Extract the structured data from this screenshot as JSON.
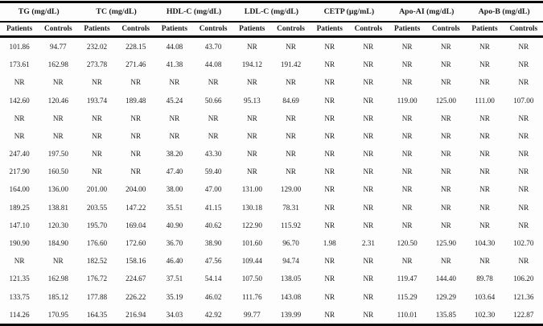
{
  "table": {
    "groups": [
      {
        "label": "TG (mg/dL)"
      },
      {
        "label": "TC (mg/dL)"
      },
      {
        "label": "HDL-C (mg/dL)"
      },
      {
        "label": "LDL-C (mg/dL)"
      },
      {
        "label": "CETP (µg/mL)"
      },
      {
        "label": "Apo-AI (mg/dL)"
      },
      {
        "label": "Apo-B (mg/dL)"
      }
    ],
    "sub_headers": [
      "Patients",
      "Controls"
    ],
    "rows": [
      [
        "101.86",
        "94.77",
        "232.02",
        "228.15",
        "44.08",
        "43.70",
        "NR",
        "NR",
        "NR",
        "NR",
        "NR",
        "NR",
        "NR",
        "NR"
      ],
      [
        "173.61",
        "162.98",
        "273.78",
        "271.46",
        "41.38",
        "44.08",
        "194.12",
        "191.42",
        "NR",
        "NR",
        "NR",
        "NR",
        "NR",
        "NR"
      ],
      [
        "NR",
        "NR",
        "NR",
        "NR",
        "NR",
        "NR",
        "NR",
        "NR",
        "NR",
        "NR",
        "NR",
        "NR",
        "NR",
        "NR"
      ],
      [
        "142.60",
        "120.46",
        "193.74",
        "189.48",
        "45.24",
        "50.66",
        "95.13",
        "84.69",
        "NR",
        "NR",
        "119.00",
        "125.00",
        "111.00",
        "107.00"
      ],
      [
        "NR",
        "NR",
        "NR",
        "NR",
        "NR",
        "NR",
        "NR",
        "NR",
        "NR",
        "NR",
        "NR",
        "NR",
        "NR",
        "NR"
      ],
      [
        "NR",
        "NR",
        "NR",
        "NR",
        "NR",
        "NR",
        "NR",
        "NR",
        "NR",
        "NR",
        "NR",
        "NR",
        "NR",
        "NR"
      ],
      [
        "247.40",
        "197.50",
        "NR",
        "NR",
        "38.20",
        "43.30",
        "NR",
        "NR",
        "NR",
        "NR",
        "NR",
        "NR",
        "NR",
        "NR"
      ],
      [
        "217.90",
        "160.50",
        "NR",
        "NR",
        "47.40",
        "59.40",
        "NR",
        "NR",
        "NR",
        "NR",
        "NR",
        "NR",
        "NR",
        "NR"
      ],
      [
        "164.00",
        "136.00",
        "201.00",
        "204.00",
        "38.00",
        "47.00",
        "131.00",
        "129.00",
        "NR",
        "NR",
        "NR",
        "NR",
        "NR",
        "NR"
      ],
      [
        "189.25",
        "138.81",
        "203.55",
        "147.22",
        "35.51",
        "41.15",
        "130.18",
        "78.31",
        "NR",
        "NR",
        "NR",
        "NR",
        "NR",
        "NR"
      ],
      [
        "147.10",
        "120.30",
        "195.70",
        "169.04",
        "40.90",
        "40.62",
        "122.90",
        "115.92",
        "NR",
        "NR",
        "NR",
        "NR",
        "NR",
        "NR"
      ],
      [
        "190.90",
        "184.90",
        "176.60",
        "172.60",
        "36.70",
        "38.90",
        "101.60",
        "96.70",
        "1.98",
        "2.31",
        "120.50",
        "125.90",
        "104.30",
        "102.70"
      ],
      [
        "NR",
        "NR",
        "182.52",
        "158.16",
        "46.40",
        "47.56",
        "109.44",
        "94.74",
        "NR",
        "NR",
        "NR",
        "NR",
        "NR",
        "NR"
      ],
      [
        "121.35",
        "162.98",
        "176.72",
        "224.67",
        "37.51",
        "54.14",
        "107.50",
        "138.05",
        "NR",
        "NR",
        "119.47",
        "144.40",
        "89.78",
        "106.20"
      ],
      [
        "133.75",
        "185.12",
        "177.88",
        "226.22",
        "35.19",
        "46.02",
        "111.76",
        "143.08",
        "NR",
        "NR",
        "115.29",
        "129.29",
        "103.64",
        "121.36"
      ],
      [
        "114.26",
        "170.95",
        "164.35",
        "216.94",
        "34.03",
        "42.92",
        "99.77",
        "139.99",
        "NR",
        "NR",
        "110.01",
        "135.85",
        "102.30",
        "122.87"
      ]
    ]
  },
  "colors": {
    "border": "#0a0a0a",
    "text": "#1b1b1b",
    "background": "#fdfdfd"
  }
}
